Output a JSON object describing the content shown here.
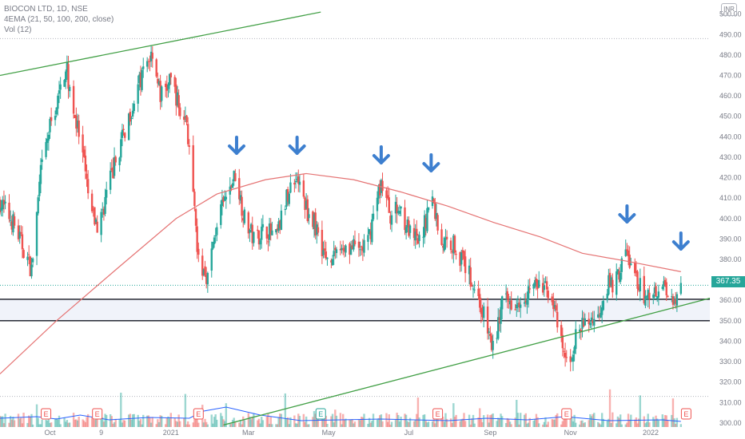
{
  "header": {
    "title": "BIOCON LTD, 1D, NSE",
    "indicator": "4EMA (21, 50, 100, 200, close)",
    "volume": "Vol (12)",
    "currency": "INR"
  },
  "price_label": "367.35",
  "colors": {
    "up": "#26a69a",
    "down": "#ef5350",
    "ema": "#e57373",
    "trend": "#43a047",
    "volume_ma": "#2962ff",
    "arrow": "#3d7fcf",
    "earnings": "#ef5350",
    "dividend": "#26a69a",
    "zone_line": "#131722"
  },
  "chart_data": {
    "type": "candlestick",
    "y_axis": {
      "ticks": [
        300,
        310,
        320,
        330,
        340,
        350,
        360,
        370,
        380,
        390,
        400,
        410,
        420,
        430,
        440,
        450,
        460,
        470,
        480,
        490,
        500
      ],
      "tick_labels": [
        "300.00",
        "310.00",
        "320.00",
        "330.00",
        "340.00",
        "350.00",
        "360.00",
        "370.00",
        "380.00",
        "390.00",
        "400.00",
        "410.00",
        "420.00",
        "430.00",
        "440.00",
        "450.00",
        "460.00",
        "470.00",
        "480.00",
        "490.00",
        "500.00"
      ],
      "range": [
        298,
        503
      ]
    },
    "x_axis": {
      "labels": [
        "Oct",
        "9",
        "2021",
        "Mar",
        "May",
        "Jul",
        "Sep",
        "Nov",
        "2022"
      ],
      "label_dates": [
        "2020-10-01",
        "2020-11-09",
        "2021-01-01",
        "2021-03-01",
        "2021-05-01",
        "2021-07-01",
        "2021-09-01",
        "2021-11-01",
        "2022-01-01"
      ],
      "range": [
        "2020-08-24",
        "2022-02-15"
      ]
    },
    "price_path": [
      [
        "2020-08-24",
        408
      ],
      [
        "2020-09-03",
        398
      ],
      [
        "2020-09-11",
        385
      ],
      [
        "2020-09-17",
        375
      ],
      [
        "2020-09-24",
        422
      ],
      [
        "2020-10-01",
        445
      ],
      [
        "2020-10-08",
        460
      ],
      [
        "2020-10-13",
        475
      ],
      [
        "2020-10-20",
        450
      ],
      [
        "2020-10-26",
        430
      ],
      [
        "2020-11-01",
        403
      ],
      [
        "2020-11-07",
        395
      ],
      [
        "2020-11-14",
        415
      ],
      [
        "2020-11-22",
        432
      ],
      [
        "2020-11-30",
        450
      ],
      [
        "2020-12-06",
        462
      ],
      [
        "2020-12-13",
        475
      ],
      [
        "2020-12-18",
        482
      ],
      [
        "2020-12-24",
        460
      ],
      [
        "2021-01-02",
        468
      ],
      [
        "2021-01-08",
        452
      ],
      [
        "2021-01-13",
        448
      ],
      [
        "2021-01-22",
        378
      ],
      [
        "2021-01-29",
        372
      ],
      [
        "2021-02-05",
        398
      ],
      [
        "2021-02-12",
        410
      ],
      [
        "2021-02-19",
        422
      ],
      [
        "2021-02-26",
        400
      ],
      [
        "2021-03-05",
        390
      ],
      [
        "2021-03-14",
        395
      ],
      [
        "2021-03-22",
        390
      ],
      [
        "2021-03-31",
        412
      ],
      [
        "2021-04-06",
        422
      ],
      [
        "2021-04-14",
        405
      ],
      [
        "2021-04-22",
        395
      ],
      [
        "2021-04-29",
        380
      ],
      [
        "2021-05-07",
        385
      ],
      [
        "2021-05-15",
        387
      ],
      [
        "2021-05-23",
        384
      ],
      [
        "2021-05-31",
        388
      ],
      [
        "2021-06-05",
        405
      ],
      [
        "2021-06-10",
        418
      ],
      [
        "2021-06-17",
        402
      ],
      [
        "2021-06-25",
        405
      ],
      [
        "2021-07-03",
        390
      ],
      [
        "2021-07-10",
        388
      ],
      [
        "2021-07-18",
        412
      ],
      [
        "2021-07-26",
        388
      ],
      [
        "2021-08-04",
        388
      ],
      [
        "2021-08-12",
        378
      ],
      [
        "2021-08-21",
        365
      ],
      [
        "2021-08-29",
        348
      ],
      [
        "2021-09-03",
        336
      ],
      [
        "2021-09-10",
        358
      ],
      [
        "2021-09-18",
        360
      ],
      [
        "2021-09-26",
        362
      ],
      [
        "2021-10-03",
        368
      ],
      [
        "2021-10-10",
        366
      ],
      [
        "2021-10-17",
        365
      ],
      [
        "2021-10-24",
        340
      ],
      [
        "2021-10-30",
        327
      ],
      [
        "2021-11-06",
        344
      ],
      [
        "2021-11-14",
        350
      ],
      [
        "2021-11-22",
        352
      ],
      [
        "2021-11-28",
        368
      ],
      [
        "2021-12-05",
        368
      ],
      [
        "2021-12-13",
        384
      ],
      [
        "2021-12-20",
        372
      ],
      [
        "2021-12-27",
        362
      ],
      [
        "2022-01-04",
        365
      ],
      [
        "2022-01-11",
        368
      ],
      [
        "2022-01-18",
        360
      ],
      [
        "2022-01-24",
        367.35
      ]
    ],
    "ema": [
      [
        "2020-08-24",
        324
      ],
      [
        "2020-10-06",
        350
      ],
      [
        "2020-11-22",
        376
      ],
      [
        "2021-01-05",
        400
      ],
      [
        "2021-02-05",
        412
      ],
      [
        "2021-03-14",
        419
      ],
      [
        "2021-04-14",
        422
      ],
      [
        "2021-05-20",
        419
      ],
      [
        "2021-06-25",
        413
      ],
      [
        "2021-07-31",
        406
      ],
      [
        "2021-09-04",
        398
      ],
      [
        "2021-10-09",
        391
      ],
      [
        "2021-11-10",
        383
      ],
      [
        "2021-12-15",
        379
      ],
      [
        "2022-01-24",
        374
      ]
    ],
    "horizontal_lines": [
      360.5,
      350
    ],
    "trendlines": [
      {
        "from": [
          "2020-08-24",
          470
        ],
        "to": [
          "2021-04-25",
          501
        ]
      },
      {
        "from": [
          "2021-02-10",
          299
        ],
        "to": [
          "2022-02-15",
          361
        ]
      }
    ],
    "arrows": [
      "2021-02-20",
      "2021-04-07",
      "2021-06-10",
      "2021-07-18",
      "2021-12-14",
      "2022-01-24"
    ],
    "event_markers": [
      {
        "date": "2020-09-28",
        "label": "E",
        "kind": "earnings"
      },
      {
        "date": "2020-11-06",
        "label": "E",
        "kind": "earnings"
      },
      {
        "date": "2021-01-22",
        "label": "E",
        "kind": "earnings"
      },
      {
        "date": "2021-04-25",
        "label": "E",
        "kind": "dividend"
      },
      {
        "date": "2021-07-23",
        "label": "E",
        "kind": "earnings"
      },
      {
        "date": "2021-10-29",
        "label": "E",
        "kind": "earnings"
      },
      {
        "date": "2022-01-28",
        "label": "E",
        "kind": "earnings"
      }
    ],
    "volume_ma": [
      [
        "2020-08-24",
        1.1
      ],
      [
        "2020-09-21",
        1.3
      ],
      [
        "2020-10-06",
        1.0
      ],
      [
        "2020-10-24",
        1.5
      ],
      [
        "2020-11-15",
        0.9
      ],
      [
        "2020-12-15",
        1.2
      ],
      [
        "2021-01-15",
        1.1
      ],
      [
        "2021-01-26",
        2.0
      ],
      [
        "2021-02-12",
        2.5
      ],
      [
        "2021-03-10",
        1.5
      ],
      [
        "2021-04-10",
        0.8
      ],
      [
        "2021-06-10",
        1.0
      ],
      [
        "2021-07-31",
        0.8
      ],
      [
        "2021-08-29",
        1.1
      ],
      [
        "2021-09-29",
        0.9
      ],
      [
        "2021-10-28",
        1.3
      ],
      [
        "2021-11-30",
        0.8
      ],
      [
        "2022-01-10",
        0.9
      ],
      [
        "2022-01-24",
        0.7
      ]
    ]
  }
}
